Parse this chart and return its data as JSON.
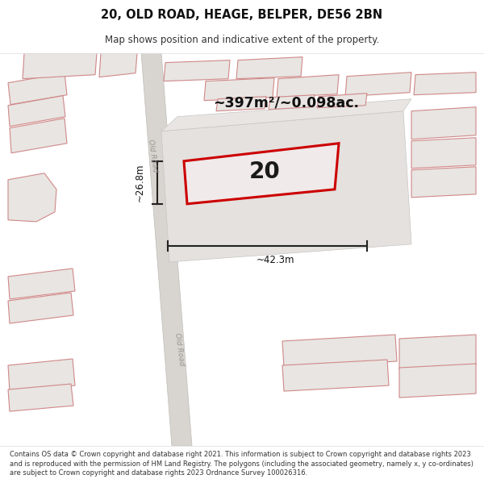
{
  "title": "20, OLD ROAD, HEAGE, BELPER, DE56 2BN",
  "subtitle": "Map shows position and indicative extent of the property.",
  "footer": "Contains OS data © Crown copyright and database right 2021. This information is subject to Crown copyright and database rights 2023 and is reproduced with the permission of HM Land Registry. The polygons (including the associated geometry, namely x, y co-ordinates) are subject to Crown copyright and database rights 2023 Ordnance Survey 100026316.",
  "area_text": "~397m²/~0.098ac.",
  "plot_number": "20",
  "width_label": "~42.3m",
  "height_label": "~26.8m",
  "road_label": "Old Road",
  "map_bg": "#f0eeeb",
  "road_fill": "#d8d5d0",
  "road_edge": "#c0bdb8",
  "building_fill": "#e8e5e2",
  "building_edge": "#d08888",
  "plot_fill": "#e8e5e2",
  "plot_edge": "#c8c5c2",
  "red_fill": "#f0eaea",
  "red_edge": "#cc0000",
  "dim_color": "#222222",
  "text_color": "#111111",
  "figsize": [
    6.0,
    6.25
  ],
  "dpi": 100
}
